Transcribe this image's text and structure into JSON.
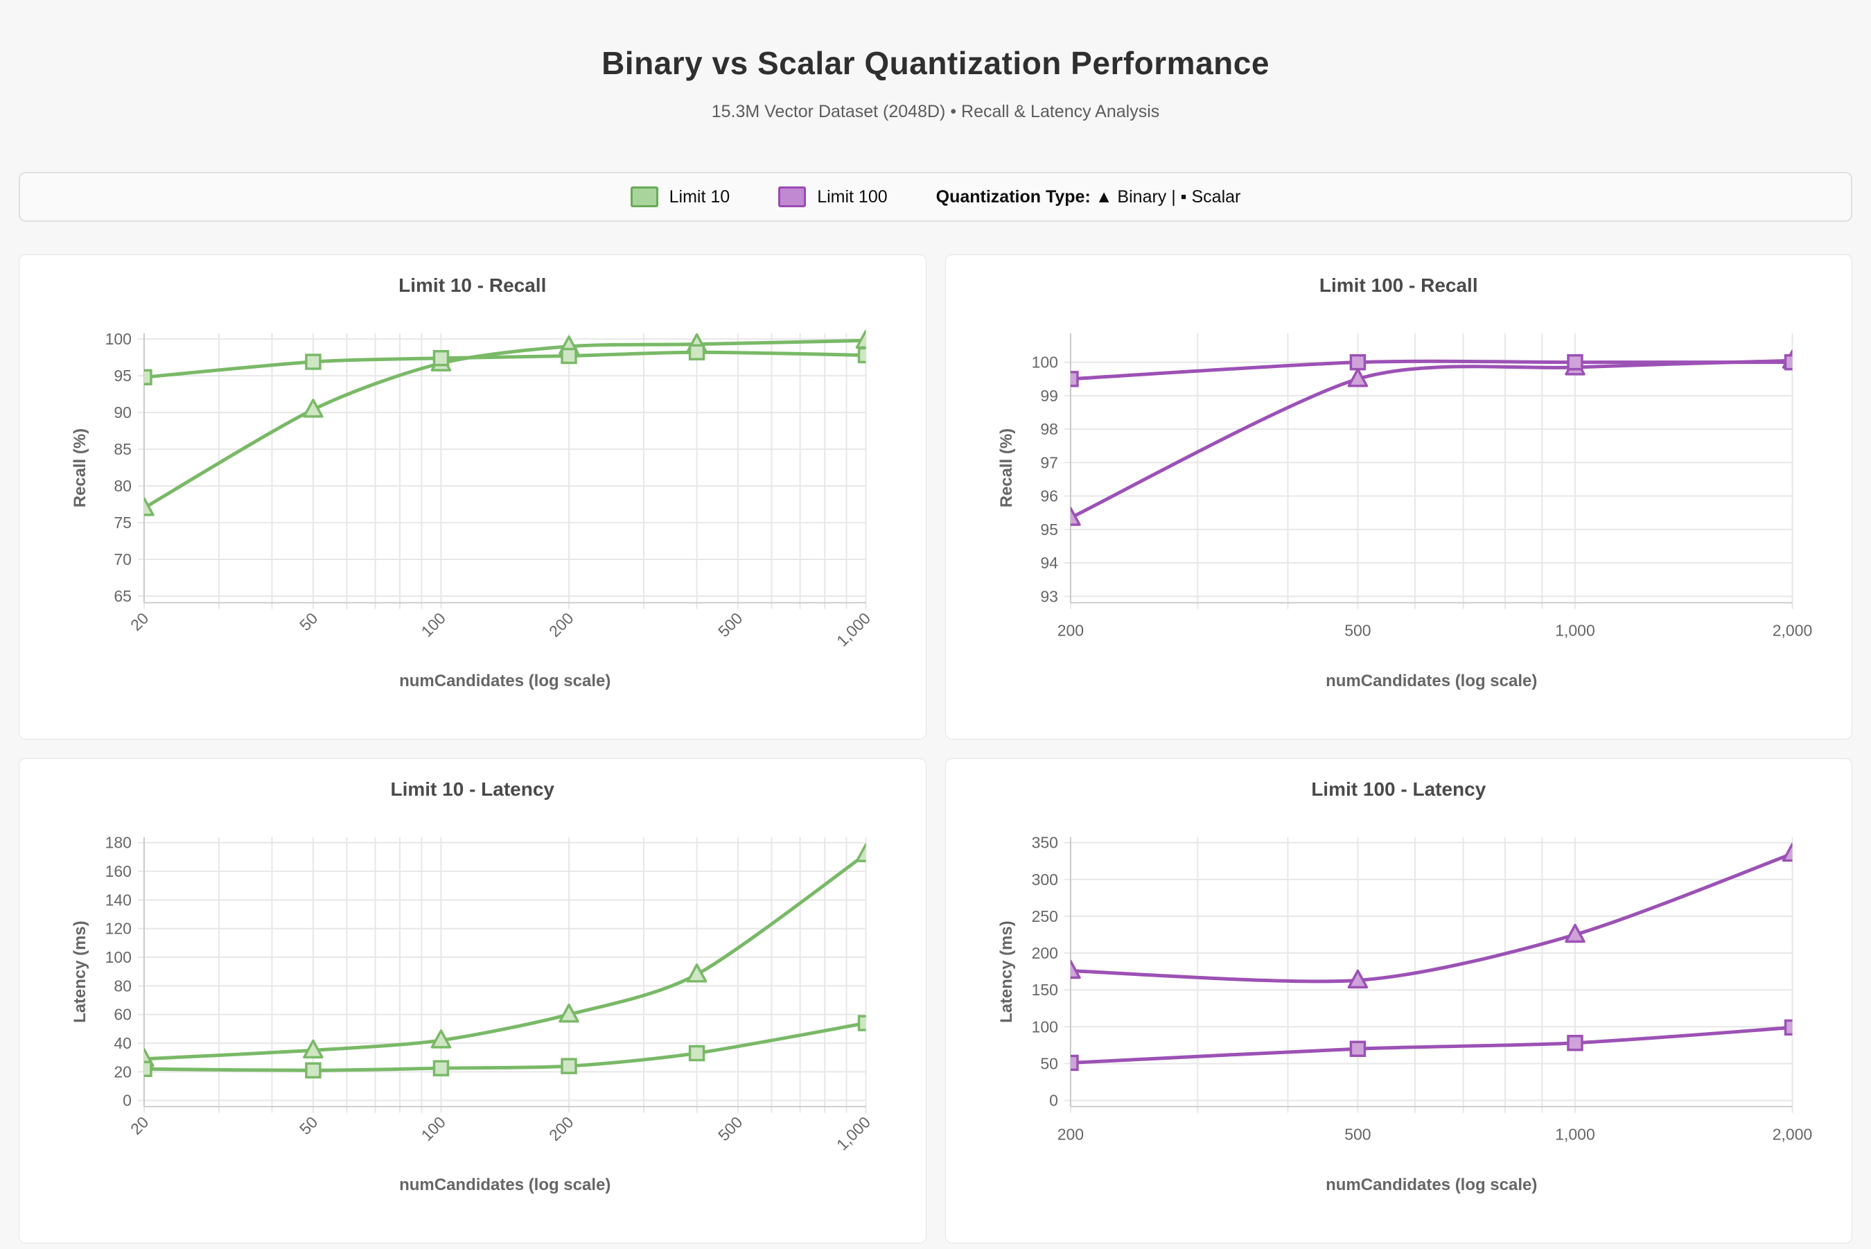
{
  "header": {
    "title": "Binary vs Scalar Quantization Performance",
    "subtitle": "15.3M Vector Dataset (2048D) • Recall & Latency Analysis"
  },
  "legend": {
    "items": [
      {
        "label": "Limit 10",
        "fill": "#a9d49b",
        "stroke": "#68ab57"
      },
      {
        "label": "Limit 100",
        "fill": "#c289d3",
        "stroke": "#9b4bb1"
      }
    ],
    "quantization_label": "Quantization Type:",
    "quantization_value": " ▲ Binary | ▪ Scalar"
  },
  "chart_data": [
    {
      "id": "limit10-recall",
      "type": "line",
      "title": "Limit 10 - Recall",
      "xlabel": "numCandidates (log scale)",
      "ylabel": "Recall (%)",
      "x_scale": "log",
      "x": [
        20,
        50,
        100,
        200,
        400,
        1000
      ],
      "xlim": [
        20,
        1000
      ],
      "x_ticks": [
        20,
        50,
        100,
        200,
        500,
        1000
      ],
      "x_tick_labels": [
        "20",
        "50",
        "100",
        "200",
        "500",
        "1,000"
      ],
      "x_tick_rotated": true,
      "y_ticks": [
        65,
        70,
        75,
        80,
        85,
        90,
        95,
        100
      ],
      "ylim": [
        64.1,
        100.8
      ],
      "grid": true,
      "color": {
        "line": "#79b967",
        "marker_fill": "#cfe6c4"
      },
      "series": [
        {
          "name": "Binary",
          "marker": "triangle",
          "values": [
            77.0,
            90.4,
            96.7,
            99.0,
            99.3,
            99.8
          ]
        },
        {
          "name": "Scalar",
          "marker": "square",
          "values": [
            94.8,
            96.9,
            97.4,
            97.7,
            98.2,
            97.8
          ]
        }
      ]
    },
    {
      "id": "limit100-recall",
      "type": "line",
      "title": "Limit 100 - Recall",
      "xlabel": "numCandidates (log scale)",
      "ylabel": "Recall (%)",
      "x_scale": "log",
      "x": [
        200,
        500,
        1000,
        2000
      ],
      "xlim": [
        200,
        2000
      ],
      "x_ticks": [
        200,
        500,
        1000,
        2000
      ],
      "x_tick_labels": [
        "200",
        "500",
        "1,000",
        "2,000"
      ],
      "x_tick_rotated": false,
      "y_ticks": [
        93,
        94,
        95,
        96,
        97,
        98,
        99,
        100
      ],
      "ylim": [
        92.81,
        100.87
      ],
      "grid": true,
      "color": {
        "line": "#9c51b5",
        "marker_fill": "#cfa3da"
      },
      "series": [
        {
          "name": "Binary",
          "marker": "triangle",
          "values": [
            95.35,
            99.5,
            99.85,
            100.05
          ]
        },
        {
          "name": "Scalar",
          "marker": "square",
          "values": [
            99.5,
            100.0,
            100.0,
            100.0
          ]
        }
      ]
    },
    {
      "id": "limit10-latency",
      "type": "line",
      "title": "Limit 10 - Latency",
      "xlabel": "numCandidates (log scale)",
      "ylabel": "Latency (ms)",
      "x_scale": "log",
      "x": [
        20,
        50,
        100,
        200,
        400,
        1000
      ],
      "xlim": [
        20,
        1000
      ],
      "x_ticks": [
        20,
        50,
        100,
        200,
        500,
        1000
      ],
      "x_tick_labels": [
        "20",
        "50",
        "100",
        "200",
        "500",
        "1,000"
      ],
      "x_tick_rotated": true,
      "y_ticks": [
        0,
        20,
        40,
        60,
        80,
        100,
        120,
        140,
        160,
        180
      ],
      "ylim": [
        -4.3,
        183.9
      ],
      "grid": true,
      "color": {
        "line": "#79b967",
        "marker_fill": "#cfe6c4"
      },
      "series": [
        {
          "name": "Binary",
          "marker": "triangle",
          "values": [
            29,
            35,
            42,
            60,
            88,
            172
          ]
        },
        {
          "name": "Scalar",
          "marker": "square",
          "values": [
            22,
            21,
            22.5,
            24,
            33,
            54
          ]
        }
      ]
    },
    {
      "id": "limit100-latency",
      "type": "line",
      "title": "Limit 100 - Latency",
      "xlabel": "numCandidates (log scale)",
      "ylabel": "Latency (ms)",
      "x_scale": "log",
      "x": [
        200,
        500,
        1000,
        2000
      ],
      "xlim": [
        200,
        2000
      ],
      "x_ticks": [
        200,
        500,
        1000,
        2000
      ],
      "x_tick_labels": [
        "200",
        "500",
        "1,000",
        "2,000"
      ],
      "x_tick_rotated": false,
      "y_ticks": [
        0,
        50,
        100,
        150,
        200,
        250,
        300,
        350
      ],
      "ylim": [
        -8.4,
        357.5
      ],
      "grid": true,
      "color": {
        "line": "#9c51b5",
        "marker_fill": "#cfa3da"
      },
      "series": [
        {
          "name": "Binary",
          "marker": "triangle",
          "values": [
            176,
            163,
            225,
            335
          ]
        },
        {
          "name": "Scalar",
          "marker": "square",
          "values": [
            51,
            70,
            78,
            99
          ]
        }
      ]
    }
  ]
}
